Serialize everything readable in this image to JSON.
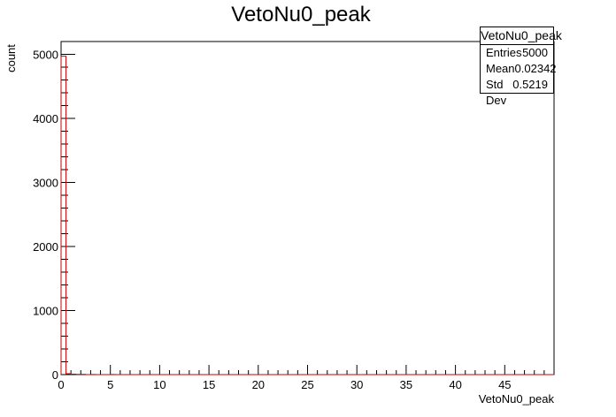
{
  "chart_data": {
    "type": "bar",
    "title": "VetoNu0_peak",
    "xlabel": "VetoNu0_peak",
    "ylabel": "count",
    "xlim": [
      0,
      50
    ],
    "ylim": [
      0,
      5200
    ],
    "x_tick_labels": [
      "0",
      "5",
      "10",
      "15",
      "20",
      "25",
      "30",
      "35",
      "40",
      "45"
    ],
    "y_tick_labels": [
      "0",
      "1000",
      "2000",
      "3000",
      "4000",
      "5000"
    ],
    "bin_width": 0.5,
    "bins": [
      {
        "x": 0.0,
        "value": 4970
      },
      {
        "x": 0.5,
        "value": 14
      },
      {
        "x": 1.0,
        "value": 7
      },
      {
        "x": 1.5,
        "value": 4
      },
      {
        "x": 2.0,
        "value": 3
      },
      {
        "x": 3.0,
        "value": 1
      },
      {
        "x": 5.0,
        "value": 1
      }
    ],
    "line_color": "#cc0000",
    "grid": false,
    "stats_box": {
      "title": "VetoNu0_peak",
      "rows": [
        {
          "label": "Entries",
          "value": "5000"
        },
        {
          "label": "Mean",
          "value": "0.02342"
        },
        {
          "label": "Std Dev",
          "value": "0.5219"
        }
      ]
    }
  }
}
